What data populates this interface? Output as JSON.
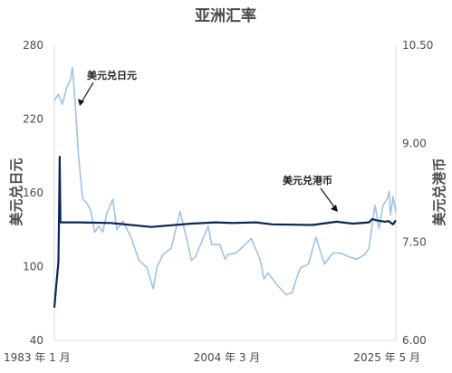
{
  "chart_data": {
    "type": "line",
    "title": "亚洲汇率",
    "xlabel": "",
    "x_tick_labels": [
      "1983 年 1 月",
      "2004 年 3 月",
      "2025 年 5 月"
    ],
    "x_range": [
      "1983-01",
      "2025-05"
    ],
    "y_left": {
      "label": "美元兑日元",
      "ylim": [
        40,
        280
      ],
      "ticks": [
        40,
        100,
        160,
        220,
        280
      ]
    },
    "y_right": {
      "label": "美元兑港币",
      "ylim": [
        6.0,
        10.5
      ],
      "ticks": [
        "6.00",
        "7.50",
        "9.00",
        "10.50"
      ]
    },
    "grid": false,
    "legend": "none",
    "annotations": [
      {
        "text": "美元兑日元",
        "series": "USD/JPY"
      },
      {
        "text": "美元兑港币",
        "series": "USD/HKD"
      }
    ],
    "series": [
      {
        "name": "美元兑日元",
        "axis": "left",
        "color": "#9dc3e6",
        "x": [
          "1983-01",
          "1983-07",
          "1984-01",
          "1984-07",
          "1985-01",
          "1985-04",
          "1985-07",
          "1985-10",
          "1986-01",
          "1986-07",
          "1987-01",
          "1987-07",
          "1988-01",
          "1988-07",
          "1989-01",
          "1989-07",
          "1990-04",
          "1990-10",
          "1991-07",
          "1992-07",
          "1993-07",
          "1994-07",
          "1995-04",
          "1995-10",
          "1996-07",
          "1997-07",
          "1998-08",
          "1999-07",
          "2000-01",
          "2000-07",
          "2001-07",
          "2002-02",
          "2002-07",
          "2003-07",
          "2004-03",
          "2004-07",
          "2005-07",
          "2006-07",
          "2007-06",
          "2008-07",
          "2009-01",
          "2009-07",
          "2010-07",
          "2011-10",
          "2012-07",
          "2013-01",
          "2013-07",
          "2014-07",
          "2015-06",
          "2016-07",
          "2017-07",
          "2018-07",
          "2019-07",
          "2020-07",
          "2021-07",
          "2022-01",
          "2022-10",
          "2023-04",
          "2023-10",
          "2024-04",
          "2024-07",
          "2024-09",
          "2025-01",
          "2025-05"
        ],
        "values": [
          235,
          240,
          232,
          245,
          252,
          262,
          240,
          215,
          190,
          155,
          152,
          146,
          128,
          133,
          128,
          143,
          155,
          130,
          137,
          124,
          105,
          99,
          82,
          100,
          110,
          115,
          145,
          120,
          105,
          108,
          124,
          133,
          118,
          118,
          106,
          110,
          111,
          117,
          123,
          106,
          90,
          95,
          86,
          77,
          79,
          90,
          99,
          102,
          124,
          102,
          111,
          111,
          108,
          106,
          110,
          115,
          150,
          131,
          150,
          155,
          161,
          142,
          157,
          144
        ]
      },
      {
        "name": "美元兑港币",
        "axis": "right",
        "color": "#0b2555",
        "x": [
          "1983-01",
          "1983-04",
          "1983-07",
          "1983-08",
          "1983-09",
          "1983-10",
          "1984-01",
          "1986-01",
          "1990-01",
          "1995-01",
          "2000-01",
          "2003-01",
          "2005-01",
          "2008-01",
          "2010-01",
          "2015-01",
          "2018-01",
          "2020-01",
          "2022-01",
          "2022-06",
          "2023-01",
          "2024-01",
          "2024-06",
          "2025-01",
          "2025-05"
        ],
        "values": [
          6.5,
          6.85,
          7.2,
          7.95,
          8.8,
          7.8,
          7.8,
          7.8,
          7.79,
          7.73,
          7.78,
          7.8,
          7.79,
          7.8,
          7.77,
          7.76,
          7.81,
          7.78,
          7.8,
          7.85,
          7.83,
          7.81,
          7.82,
          7.77,
          7.83
        ]
      }
    ]
  }
}
